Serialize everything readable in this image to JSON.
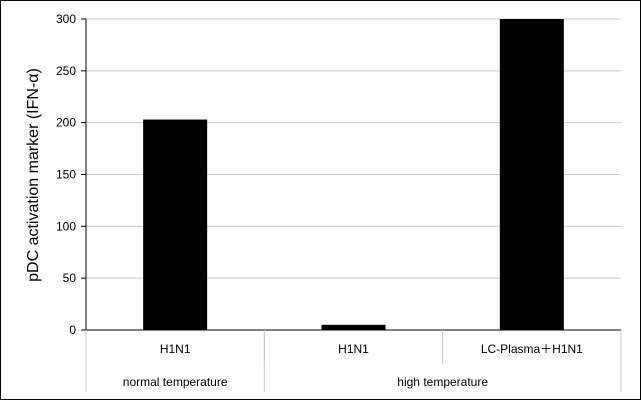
{
  "chart_data": {
    "type": "bar",
    "ylabel": "pDC activation marker  (IFN-α)",
    "ylim": [
      0,
      300
    ],
    "yticks": [
      0,
      50,
      100,
      150,
      200,
      250,
      300
    ],
    "grid": true,
    "bar_color": "#000000",
    "categories": [
      "H1N1",
      "H1N1",
      "LC-Plasma＋H1N1"
    ],
    "values": [
      203,
      5,
      300
    ],
    "groups": [
      {
        "label": "normal temperature",
        "span": 1
      },
      {
        "label": "high temperature",
        "span": 2
      }
    ]
  }
}
